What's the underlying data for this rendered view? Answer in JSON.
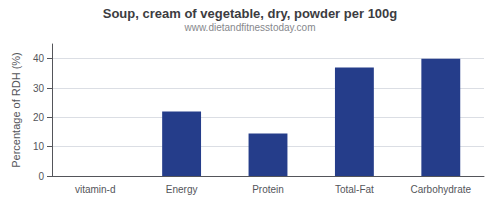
{
  "chart_data": {
    "type": "bar",
    "title": "Soup, cream of vegetable, dry, powder per 100g",
    "subtitle": "www.dietandfitnesstoday.com",
    "categories": [
      "vitamin-d",
      "Energy",
      "Protein",
      "Total-Fat",
      "Carbohydrate"
    ],
    "values": [
      0,
      22,
      14.5,
      37,
      40
    ],
    "color": "#253d8a",
    "ylabel": "Percentage of RDH (%)",
    "ylim": [
      0,
      45
    ],
    "yticks": [
      0,
      10,
      20,
      30,
      40
    ],
    "grid": true
  }
}
